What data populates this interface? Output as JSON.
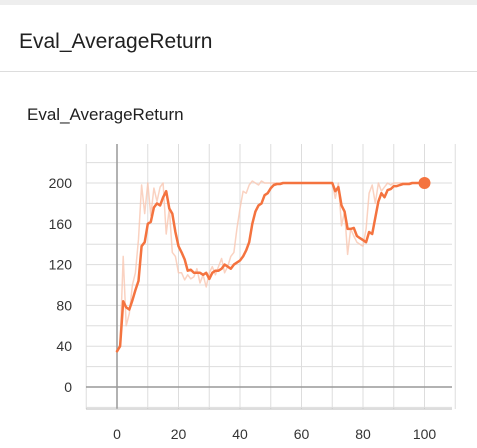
{
  "header": {
    "title": "Eval_AverageReturn"
  },
  "card": {
    "title": "Eval_AverageReturn"
  },
  "colors": {
    "smoothed_line": "#f4733f",
    "raw_line": "#f9c7b1",
    "grid": "#dddddd",
    "axis": "#999999",
    "text": "#333333"
  },
  "chart_data": {
    "type": "line",
    "title": "Eval_AverageReturn",
    "xlabel": "",
    "ylabel": "",
    "xlim": [
      -10,
      110
    ],
    "ylim": [
      -10,
      235
    ],
    "grid": true,
    "x_ticks": [
      0,
      20,
      40,
      60,
      80,
      100
    ],
    "x_tick_labels": [
      "0",
      "20",
      "40",
      "60",
      "80",
      "100"
    ],
    "y_ticks": [
      0,
      40,
      80,
      120,
      160,
      200
    ],
    "y_tick_labels": [
      "0",
      "40",
      "80",
      "120",
      "160",
      "200"
    ],
    "series": [
      {
        "style": "raw",
        "x": [
          0,
          1,
          2,
          3,
          4,
          5,
          6,
          7,
          8,
          9,
          10,
          11,
          12,
          13,
          14,
          15,
          16,
          17,
          18,
          19,
          20,
          21,
          22,
          23,
          24,
          25,
          26,
          27,
          28,
          29,
          30,
          31,
          32,
          33,
          34,
          35,
          36,
          37,
          38,
          39,
          40,
          41,
          42,
          43,
          44,
          45,
          46,
          47,
          48,
          49,
          50,
          51,
          52,
          53,
          54,
          55,
          56,
          57,
          58,
          59,
          60,
          61,
          62,
          63,
          64,
          65,
          66,
          67,
          68,
          69,
          70,
          71,
          72,
          73,
          74,
          75,
          76,
          77,
          78,
          79,
          80,
          81,
          82,
          83,
          84,
          85,
          86,
          87,
          88,
          89,
          90,
          91,
          92,
          93,
          94,
          95,
          96,
          97,
          98,
          99,
          100
        ],
        "values": [
          35,
          42,
          128,
          60,
          72,
          100,
          112,
          145,
          198,
          170,
          200,
          168,
          195,
          182,
          196,
          200,
          150,
          175,
          132,
          128,
          112,
          112,
          105,
          110,
          106,
          108,
          116,
          102,
          110,
          98,
          112,
          118,
          110,
          118,
          126,
          112,
          118,
          128,
          132,
          155,
          175,
          192,
          190,
          198,
          202,
          200,
          198,
          202,
          200,
          200,
          200,
          200,
          200,
          200,
          200,
          200,
          200,
          200,
          200,
          200,
          200,
          200,
          200,
          200,
          200,
          200,
          200,
          200,
          200,
          200,
          200,
          185,
          200,
          158,
          172,
          130,
          155,
          148,
          142,
          140,
          138,
          155,
          190,
          198,
          180,
          200,
          192,
          196,
          200,
          198,
          200,
          200,
          200,
          200,
          200,
          200,
          200,
          200,
          200,
          200,
          200
        ]
      },
      {
        "style": "smoothed",
        "x": [
          0,
          1,
          2,
          3,
          4,
          5,
          6,
          7,
          8,
          9,
          10,
          11,
          12,
          13,
          14,
          15,
          16,
          17,
          18,
          19,
          20,
          21,
          22,
          23,
          24,
          25,
          26,
          27,
          28,
          29,
          30,
          31,
          32,
          33,
          34,
          35,
          36,
          37,
          38,
          39,
          40,
          41,
          42,
          43,
          44,
          45,
          46,
          47,
          48,
          49,
          50,
          51,
          52,
          53,
          54,
          55,
          56,
          57,
          58,
          59,
          60,
          61,
          62,
          63,
          64,
          65,
          66,
          67,
          68,
          69,
          70,
          71,
          72,
          73,
          74,
          75,
          76,
          77,
          78,
          79,
          80,
          81,
          82,
          83,
          84,
          85,
          86,
          87,
          88,
          89,
          90,
          91,
          92,
          93,
          94,
          95,
          96,
          97,
          98,
          99,
          100
        ],
        "values": [
          35,
          40,
          84,
          78,
          76,
          85,
          95,
          104,
          138,
          142,
          160,
          162,
          176,
          180,
          178,
          186,
          192,
          175,
          170,
          152,
          138,
          132,
          125,
          114,
          115,
          112,
          112,
          112,
          110,
          112,
          106,
          112,
          114,
          114,
          116,
          120,
          118,
          116,
          120,
          122,
          124,
          128,
          134,
          142,
          160,
          172,
          178,
          180,
          188,
          190,
          195,
          198,
          199,
          199,
          200,
          200,
          200,
          200,
          200,
          200,
          200,
          200,
          200,
          200,
          200,
          200,
          200,
          200,
          200,
          200,
          200,
          192,
          196,
          178,
          172,
          155,
          155,
          156,
          148,
          146,
          144,
          142,
          152,
          150,
          166,
          182,
          190,
          186,
          193,
          194,
          197,
          197,
          198,
          199,
          199,
          199,
          200,
          200,
          200,
          200,
          200
        ]
      }
    ]
  }
}
